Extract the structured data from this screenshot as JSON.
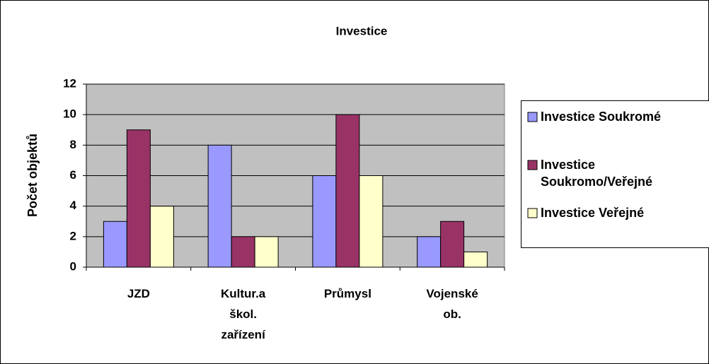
{
  "chart_data": {
    "type": "bar",
    "title": "Investice",
    "y_label": "Počet objektů",
    "categories": [
      "JZD",
      "Kultur.a škol. zařízení",
      "Průmysl",
      "Vojenské ob."
    ],
    "series": [
      {
        "name": "Investice Soukromé",
        "color": "#9999ff",
        "values": [
          3,
          8,
          6,
          2
        ]
      },
      {
        "name": "Investice Soukromo/Veřejné",
        "color": "#993366",
        "values": [
          9,
          2,
          10,
          3
        ]
      },
      {
        "name": "Investice Veřejné",
        "color": "#ffffcc",
        "values": [
          4,
          2,
          6,
          1
        ]
      }
    ],
    "ylim": [
      0,
      12
    ],
    "yticks": [
      0,
      2,
      4,
      6,
      8,
      10,
      12
    ],
    "grid": true,
    "legend": "right"
  }
}
